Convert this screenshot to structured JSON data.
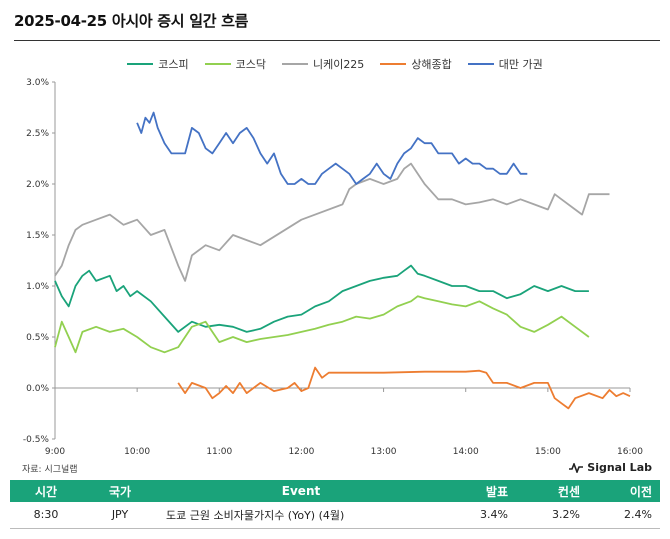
{
  "header": {
    "title": "2025-04-25 아시아 증시 일간 흐름"
  },
  "footer": {
    "source": "자료: 시그널랩",
    "brand": "Signal Lab"
  },
  "colors": {
    "kospi": "#1aa37a",
    "kosdaq": "#92d050",
    "nikkei": "#a6a6a6",
    "shanghai": "#ed7d31",
    "taiwan": "#4472c4",
    "table_header": "#1aa37a"
  },
  "table": {
    "headers": [
      "시간",
      "국가",
      "Event",
      "발표",
      "컨센",
      "이전"
    ],
    "rows": [
      {
        "time": "8:30",
        "country": "JPY",
        "event": "도쿄 근원 소비자물가지수 (YoY) (4월)",
        "actual": "3.4%",
        "consensus": "3.2%",
        "previous": "2.4%"
      }
    ]
  },
  "chart_data": {
    "type": "line",
    "title": "",
    "xlabel": "",
    "ylabel": "",
    "x_ticks": [
      "9:00",
      "10:00",
      "11:00",
      "12:00",
      "13:00",
      "14:00",
      "15:00",
      "16:00"
    ],
    "y_ticks": [
      "3.0%",
      "2.5%",
      "2.0%",
      "1.5%",
      "1.0%",
      "0.5%",
      "0.0%",
      "-0.5%"
    ],
    "xlim": [
      "9:00",
      "16:00"
    ],
    "ylim": [
      -0.5,
      3.0
    ],
    "grid": false,
    "legend_position": "top-center",
    "series": [
      {
        "name": "코스피",
        "color": "#1aa37a",
        "x": [
          "9:00",
          "9:05",
          "9:10",
          "9:15",
          "9:20",
          "9:25",
          "9:30",
          "9:40",
          "9:45",
          "9:50",
          "9:55",
          "10:00",
          "10:10",
          "10:20",
          "10:30",
          "10:40",
          "10:50",
          "11:00",
          "11:10",
          "11:20",
          "11:30",
          "11:40",
          "11:50",
          "12:00",
          "12:10",
          "12:20",
          "12:30",
          "12:40",
          "12:50",
          "13:00",
          "13:10",
          "13:15",
          "13:20",
          "13:25",
          "13:30",
          "13:40",
          "13:50",
          "14:00",
          "14:10",
          "14:20",
          "14:30",
          "14:40",
          "14:50",
          "15:00",
          "15:10",
          "15:20",
          "15:30"
        ],
        "values": [
          1.05,
          0.9,
          0.8,
          1.0,
          1.1,
          1.15,
          1.05,
          1.1,
          0.95,
          1.0,
          0.9,
          0.95,
          0.85,
          0.7,
          0.55,
          0.65,
          0.6,
          0.62,
          0.6,
          0.55,
          0.58,
          0.65,
          0.7,
          0.72,
          0.8,
          0.85,
          0.95,
          1.0,
          1.05,
          1.08,
          1.1,
          1.15,
          1.2,
          1.12,
          1.1,
          1.05,
          1.0,
          1.0,
          0.95,
          0.95,
          0.88,
          0.92,
          1.0,
          0.95,
          1.0,
          0.95,
          0.95
        ]
      },
      {
        "name": "코스닥",
        "color": "#92d050",
        "x": [
          "9:00",
          "9:05",
          "9:10",
          "9:15",
          "9:20",
          "9:30",
          "9:40",
          "9:50",
          "10:00",
          "10:10",
          "10:20",
          "10:30",
          "10:40",
          "10:50",
          "11:00",
          "11:10",
          "11:20",
          "11:30",
          "11:40",
          "11:50",
          "12:00",
          "12:10",
          "12:20",
          "12:30",
          "12:40",
          "12:50",
          "13:00",
          "13:10",
          "13:20",
          "13:25",
          "13:30",
          "13:40",
          "13:50",
          "14:00",
          "14:10",
          "14:20",
          "14:30",
          "14:40",
          "14:50",
          "15:00",
          "15:10",
          "15:20",
          "15:30"
        ],
        "values": [
          0.4,
          0.65,
          0.5,
          0.35,
          0.55,
          0.6,
          0.55,
          0.58,
          0.5,
          0.4,
          0.35,
          0.4,
          0.6,
          0.65,
          0.45,
          0.5,
          0.45,
          0.48,
          0.5,
          0.52,
          0.55,
          0.58,
          0.62,
          0.65,
          0.7,
          0.68,
          0.72,
          0.8,
          0.85,
          0.9,
          0.88,
          0.85,
          0.82,
          0.8,
          0.85,
          0.78,
          0.72,
          0.6,
          0.55,
          0.62,
          0.7,
          0.6,
          0.5
        ]
      },
      {
        "name": "니케이225",
        "color": "#a6a6a6",
        "x": [
          "9:00",
          "9:05",
          "9:10",
          "9:15",
          "9:20",
          "9:30",
          "9:40",
          "9:50",
          "10:00",
          "10:10",
          "10:20",
          "10:30",
          "10:35",
          "10:40",
          "10:50",
          "11:00",
          "11:10",
          "11:20",
          "11:30",
          "12:00",
          "12:30",
          "12:35",
          "12:40",
          "12:50",
          "13:00",
          "13:10",
          "13:15",
          "13:20",
          "13:30",
          "13:40",
          "13:50",
          "14:00",
          "14:10",
          "14:20",
          "14:30",
          "14:40",
          "14:50",
          "15:00",
          "15:05",
          "15:10",
          "15:20",
          "15:25",
          "15:30",
          "15:45"
        ],
        "values": [
          1.1,
          1.2,
          1.4,
          1.55,
          1.6,
          1.65,
          1.7,
          1.6,
          1.65,
          1.5,
          1.55,
          1.2,
          1.05,
          1.3,
          1.4,
          1.35,
          1.5,
          1.45,
          1.4,
          1.65,
          1.8,
          1.95,
          2.0,
          2.05,
          2.0,
          2.05,
          2.15,
          2.2,
          2.0,
          1.85,
          1.85,
          1.8,
          1.82,
          1.85,
          1.8,
          1.85,
          1.8,
          1.75,
          1.9,
          1.85,
          1.75,
          1.7,
          1.9,
          1.9
        ]
      },
      {
        "name": "상해종합",
        "color": "#ed7d31",
        "x": [
          "10:30",
          "10:35",
          "10:40",
          "10:50",
          "10:55",
          "11:00",
          "11:05",
          "11:10",
          "11:15",
          "11:20",
          "11:30",
          "11:40",
          "11:50",
          "11:55",
          "12:00",
          "12:05",
          "12:10",
          "12:15",
          "12:20",
          "12:25",
          "12:30",
          "13:00",
          "13:30",
          "14:00",
          "14:10",
          "14:15",
          "14:20",
          "14:30",
          "14:40",
          "14:50",
          "15:00",
          "15:05",
          "15:10",
          "15:15",
          "15:20",
          "15:30",
          "15:40",
          "15:45",
          "15:50",
          "15:55",
          "16:00"
        ],
        "values": [
          0.05,
          -0.05,
          0.05,
          0.0,
          -0.1,
          -0.05,
          0.02,
          -0.05,
          0.05,
          -0.05,
          0.05,
          -0.03,
          0.0,
          0.05,
          -0.03,
          0.0,
          0.2,
          0.1,
          0.15,
          0.15,
          0.15,
          0.15,
          0.16,
          0.16,
          0.17,
          0.15,
          0.05,
          0.05,
          0.0,
          0.05,
          0.05,
          -0.1,
          -0.15,
          -0.2,
          -0.1,
          -0.05,
          -0.1,
          -0.02,
          -0.08,
          -0.05,
          -0.08
        ]
      },
      {
        "name": "대만 가권",
        "color": "#4472c4",
        "x": [
          "10:00",
          "10:03",
          "10:06",
          "10:09",
          "10:12",
          "10:15",
          "10:20",
          "10:25",
          "10:30",
          "10:35",
          "10:40",
          "10:45",
          "10:50",
          "10:55",
          "11:00",
          "11:05",
          "11:10",
          "11:15",
          "11:20",
          "11:25",
          "11:30",
          "11:35",
          "11:40",
          "11:45",
          "11:50",
          "11:55",
          "12:00",
          "12:05",
          "12:10",
          "12:15",
          "12:20",
          "12:25",
          "12:30",
          "12:35",
          "12:40",
          "12:45",
          "12:50",
          "12:55",
          "13:00",
          "13:05",
          "13:10",
          "13:15",
          "13:20",
          "13:25",
          "13:30",
          "13:35",
          "13:40",
          "13:45",
          "13:50",
          "13:55",
          "14:00",
          "14:05",
          "14:10",
          "14:15",
          "14:20",
          "14:25",
          "14:30",
          "14:35",
          "14:40",
          "14:45"
        ],
        "values": [
          2.6,
          2.5,
          2.65,
          2.6,
          2.7,
          2.55,
          2.4,
          2.3,
          2.3,
          2.3,
          2.55,
          2.5,
          2.35,
          2.3,
          2.4,
          2.5,
          2.4,
          2.5,
          2.55,
          2.45,
          2.3,
          2.2,
          2.3,
          2.1,
          2.0,
          2.0,
          2.05,
          2.0,
          2.0,
          2.1,
          2.15,
          2.2,
          2.15,
          2.1,
          2.0,
          2.05,
          2.1,
          2.2,
          2.1,
          2.05,
          2.2,
          2.3,
          2.35,
          2.45,
          2.4,
          2.4,
          2.3,
          2.3,
          2.3,
          2.2,
          2.25,
          2.2,
          2.2,
          2.15,
          2.15,
          2.1,
          2.1,
          2.2,
          2.1,
          2.1
        ]
      }
    ]
  }
}
